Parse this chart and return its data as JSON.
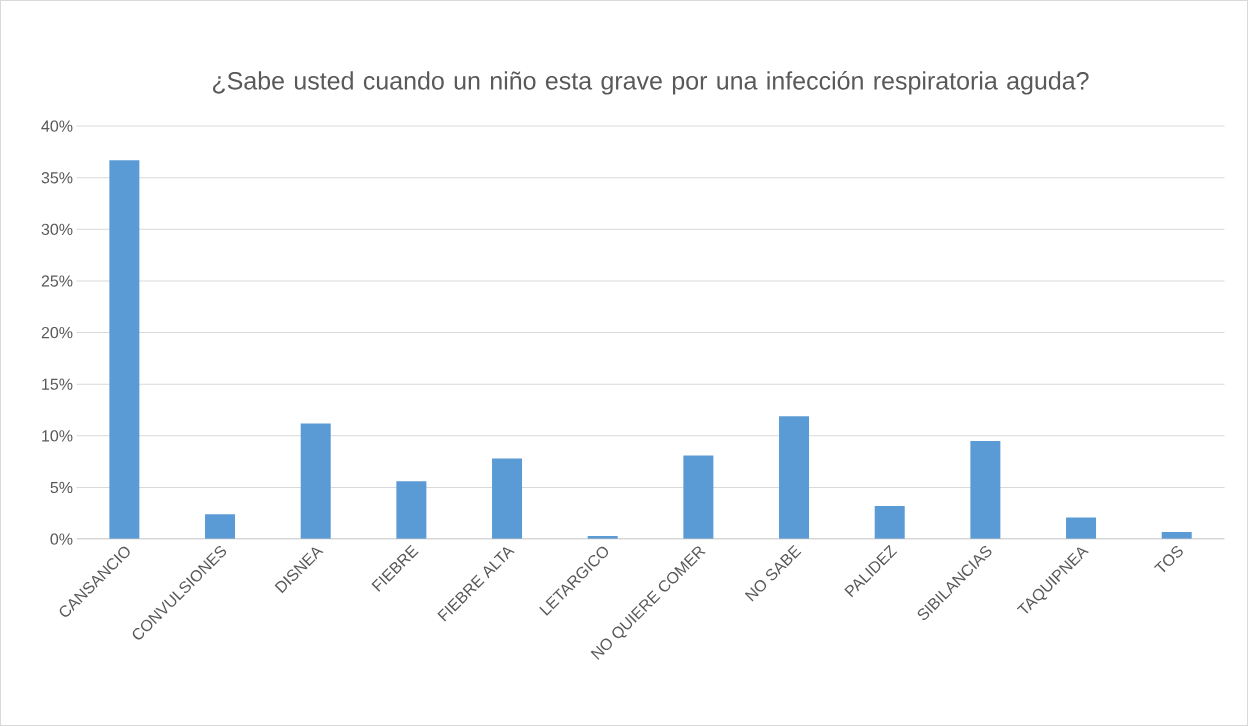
{
  "chart_data": {
    "type": "bar",
    "title": "¿Sabe usted cuando un niño esta grave por una infección respiratoria aguda?",
    "categories": [
      "CANSANCIO",
      "CONVULSIONES",
      "DISNEA",
      "FIEBRE",
      "FIEBRE ALTA",
      "LETARGICO",
      "NO QUIERE COMER",
      "NO SABE",
      "PALIDEZ",
      "SIBILANCIAS",
      "TAQUIPNEA",
      "TOS"
    ],
    "values": [
      36.7,
      2.4,
      11.2,
      5.6,
      7.8,
      0.3,
      8.1,
      11.9,
      3.2,
      9.5,
      2.1,
      0.7
    ],
    "color": "#5b9bd5",
    "ylim": [
      0,
      40
    ],
    "yticks": [
      {
        "value": 0,
        "label": "0%"
      },
      {
        "value": 5,
        "label": "5%"
      },
      {
        "value": 10,
        "label": "10%"
      },
      {
        "value": 15,
        "label": "15%"
      },
      {
        "value": 20,
        "label": "20%"
      },
      {
        "value": 25,
        "label": "25%"
      },
      {
        "value": 30,
        "label": "30%"
      },
      {
        "value": 35,
        "label": "35%"
      },
      {
        "value": 40,
        "label": "40%"
      }
    ],
    "grid": "y"
  }
}
